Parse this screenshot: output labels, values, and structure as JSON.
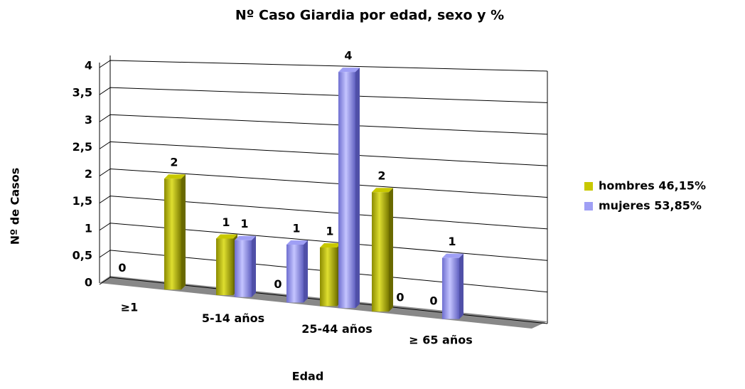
{
  "chart_data": {
    "type": "bar3d",
    "title": "Nº Caso Giardia por edad, sexo y %",
    "x_label": "Edad",
    "y_label": "Nº de Casos",
    "categories": [
      "≥1",
      null,
      "5-14 años",
      null,
      "25-44 años",
      null,
      "≥ 65 años"
    ],
    "series": [
      {
        "name": "hombres 46,15%",
        "color": "#c8c800",
        "values": [
          0,
          2,
          1,
          0,
          1,
          2,
          0
        ]
      },
      {
        "name": "mujeres 53,85%",
        "color": "#9f9ff5",
        "values": [
          null,
          null,
          1,
          1,
          4,
          0,
          1
        ]
      }
    ],
    "ylim": [
      0,
      4
    ],
    "yticks": [
      0,
      {
        "value": 0.5,
        "label": "0,5"
      },
      1,
      {
        "value": 1.5,
        "label": "1,5"
      },
      2,
      {
        "value": 2.5,
        "label": "2,5"
      },
      3,
      {
        "value": 3.5,
        "label": "3,5"
      },
      4
    ],
    "grid": true,
    "legend": "right"
  }
}
